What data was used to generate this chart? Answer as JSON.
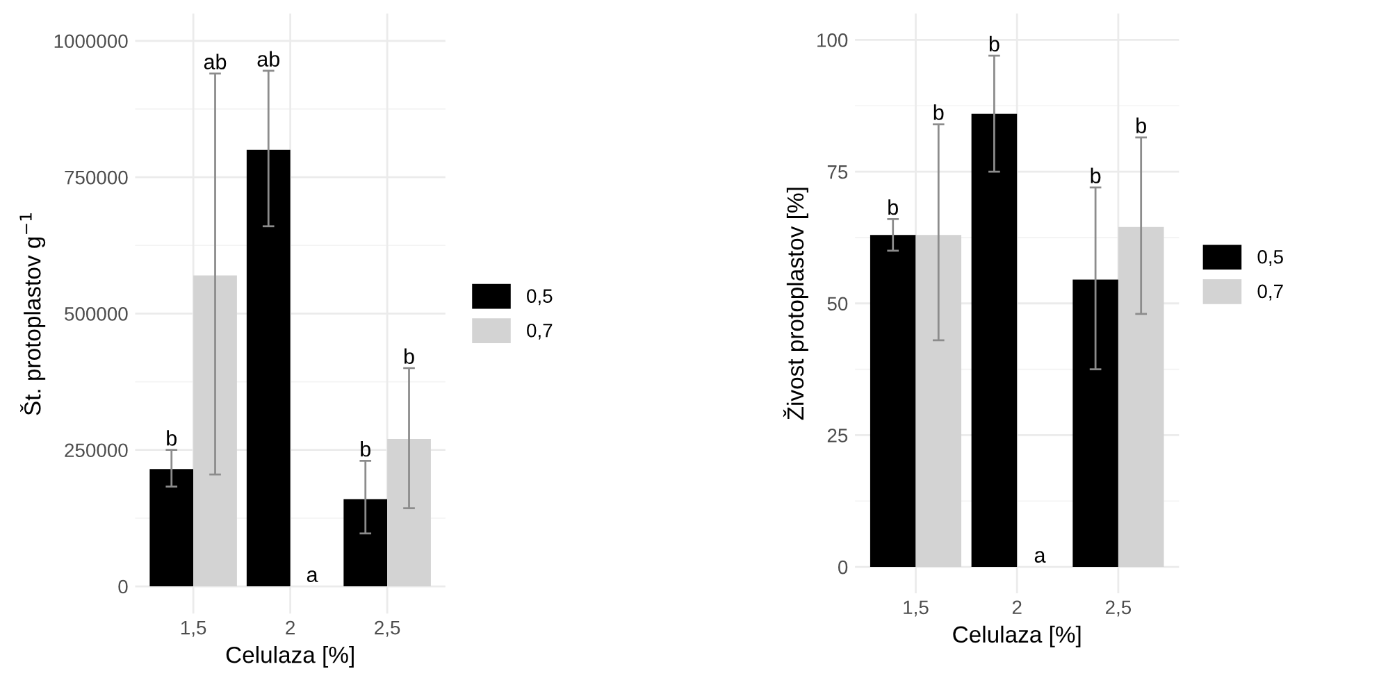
{
  "chart_data": [
    {
      "type": "bar",
      "xlabel": "Celulaza [%]",
      "ylabel": "Št. protoplastov g$^{−1}$",
      "categories": [
        "1,5",
        "2",
        "2,5"
      ],
      "series": [
        {
          "name": "0,5",
          "color": "#000000",
          "values": [
            215000,
            800000,
            160000
          ],
          "errors": [
            [
              183000,
              250000
            ],
            [
              660000,
              945000
            ],
            [
              97000,
              230000
            ]
          ]
        },
        {
          "name": "0,7",
          "color": "#d3d3d3",
          "values": [
            570000,
            0,
            270000
          ],
          "errors": [
            [
              205000,
              940000
            ],
            null,
            [
              143000,
              400000
            ]
          ]
        }
      ],
      "annotations": [
        "b",
        "ab",
        "b",
        "ab",
        "a",
        "b"
      ],
      "ylim": [
        -50000,
        1050000
      ],
      "yticks": [
        0,
        250000,
        500000,
        750000,
        1000000
      ],
      "grid": true,
      "legend": "right"
    },
    {
      "type": "bar",
      "xlabel": "Celulaza [%]",
      "ylabel": "Živost protoplastov [%]",
      "categories": [
        "1,5",
        "2",
        "2,5"
      ],
      "series": [
        {
          "name": "0,5",
          "color": "#000000",
          "values": [
            63,
            86,
            54.5
          ],
          "errors": [
            [
              60,
              66
            ],
            [
              75,
              97
            ],
            [
              37.5,
              72
            ]
          ]
        },
        {
          "name": "0,7",
          "color": "#d3d3d3",
          "values": [
            63,
            0,
            64.5
          ],
          "errors": [
            [
              43,
              84
            ],
            null,
            [
              48,
              81.5
            ]
          ]
        }
      ],
      "annotations": [
        "b",
        "b",
        "b",
        "b",
        "a",
        "b"
      ],
      "ylim": [
        -5,
        105
      ],
      "yticks": [
        0,
        25,
        50,
        75,
        100
      ],
      "grid": true,
      "legend": "right"
    }
  ]
}
